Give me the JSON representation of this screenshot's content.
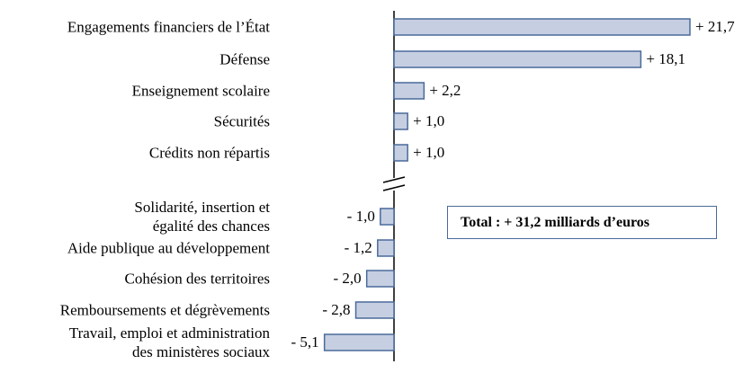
{
  "chart_data": {
    "type": "hbar",
    "categories": [
      "Engagements financiers de l’État",
      "Défense",
      "Enseignement scolaire",
      "Sécurités",
      "Crédits non répartis",
      "Solidarité, insertion et\négalité des chances",
      "Aide publique au développement",
      "Cohésion des territoires",
      "Remboursements et dégrèvements",
      "Travail, emploi et administration\ndes ministères sociaux"
    ],
    "values": [
      21.7,
      18.1,
      2.2,
      1.0,
      1.0,
      -1.0,
      -1.2,
      -2.0,
      -2.8,
      -5.1
    ],
    "value_labels": [
      "+ 21,7",
      "+ 18,1",
      "+ 2,2",
      "+ 1,0",
      "+ 1,0",
      "- 1,0",
      "- 1,2",
      "- 2,0",
      "- 2,8",
      "- 5,1"
    ],
    "color": "#c6cfe2",
    "annotation": "Total : + 31,2 milliards d’euros"
  }
}
